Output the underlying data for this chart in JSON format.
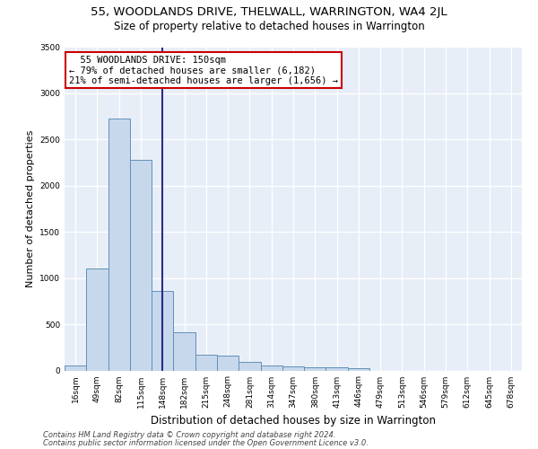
{
  "title": "55, WOODLANDS DRIVE, THELWALL, WARRINGTON, WA4 2JL",
  "subtitle": "Size of property relative to detached houses in Warrington",
  "xlabel": "Distribution of detached houses by size in Warrington",
  "ylabel": "Number of detached properties",
  "bar_color": "#c8d8ec",
  "bar_edge_color": "#6090b8",
  "background_color": "#e8eef8",
  "grid_color": "#ffffff",
  "fig_bg_color": "#ffffff",
  "categories": [
    "16sqm",
    "49sqm",
    "82sqm",
    "115sqm",
    "148sqm",
    "182sqm",
    "215sqm",
    "248sqm",
    "281sqm",
    "314sqm",
    "347sqm",
    "380sqm",
    "413sqm",
    "446sqm",
    "479sqm",
    "513sqm",
    "546sqm",
    "579sqm",
    "612sqm",
    "645sqm",
    "678sqm"
  ],
  "values": [
    50,
    1100,
    2730,
    2280,
    860,
    415,
    170,
    165,
    90,
    55,
    45,
    35,
    30,
    25,
    0,
    0,
    0,
    0,
    0,
    0,
    0
  ],
  "property_line_x": 4,
  "annotation_text": "  55 WOODLANDS DRIVE: 150sqm\n← 79% of detached houses are smaller (6,182)\n21% of semi-detached houses are larger (1,656) →",
  "annotation_box_color": "#ffffff",
  "annotation_box_edge": "#cc0000",
  "ylim": [
    0,
    3500
  ],
  "yticks": [
    0,
    500,
    1000,
    1500,
    2000,
    2500,
    3000,
    3500
  ],
  "footer1": "Contains HM Land Registry data © Crown copyright and database right 2024.",
  "footer2": "Contains public sector information licensed under the Open Government Licence v3.0.",
  "title_fontsize": 9.5,
  "subtitle_fontsize": 8.5,
  "ylabel_fontsize": 8,
  "xlabel_fontsize": 8.5,
  "tick_fontsize": 6.5,
  "footer_fontsize": 6,
  "annot_fontsize": 7.5
}
